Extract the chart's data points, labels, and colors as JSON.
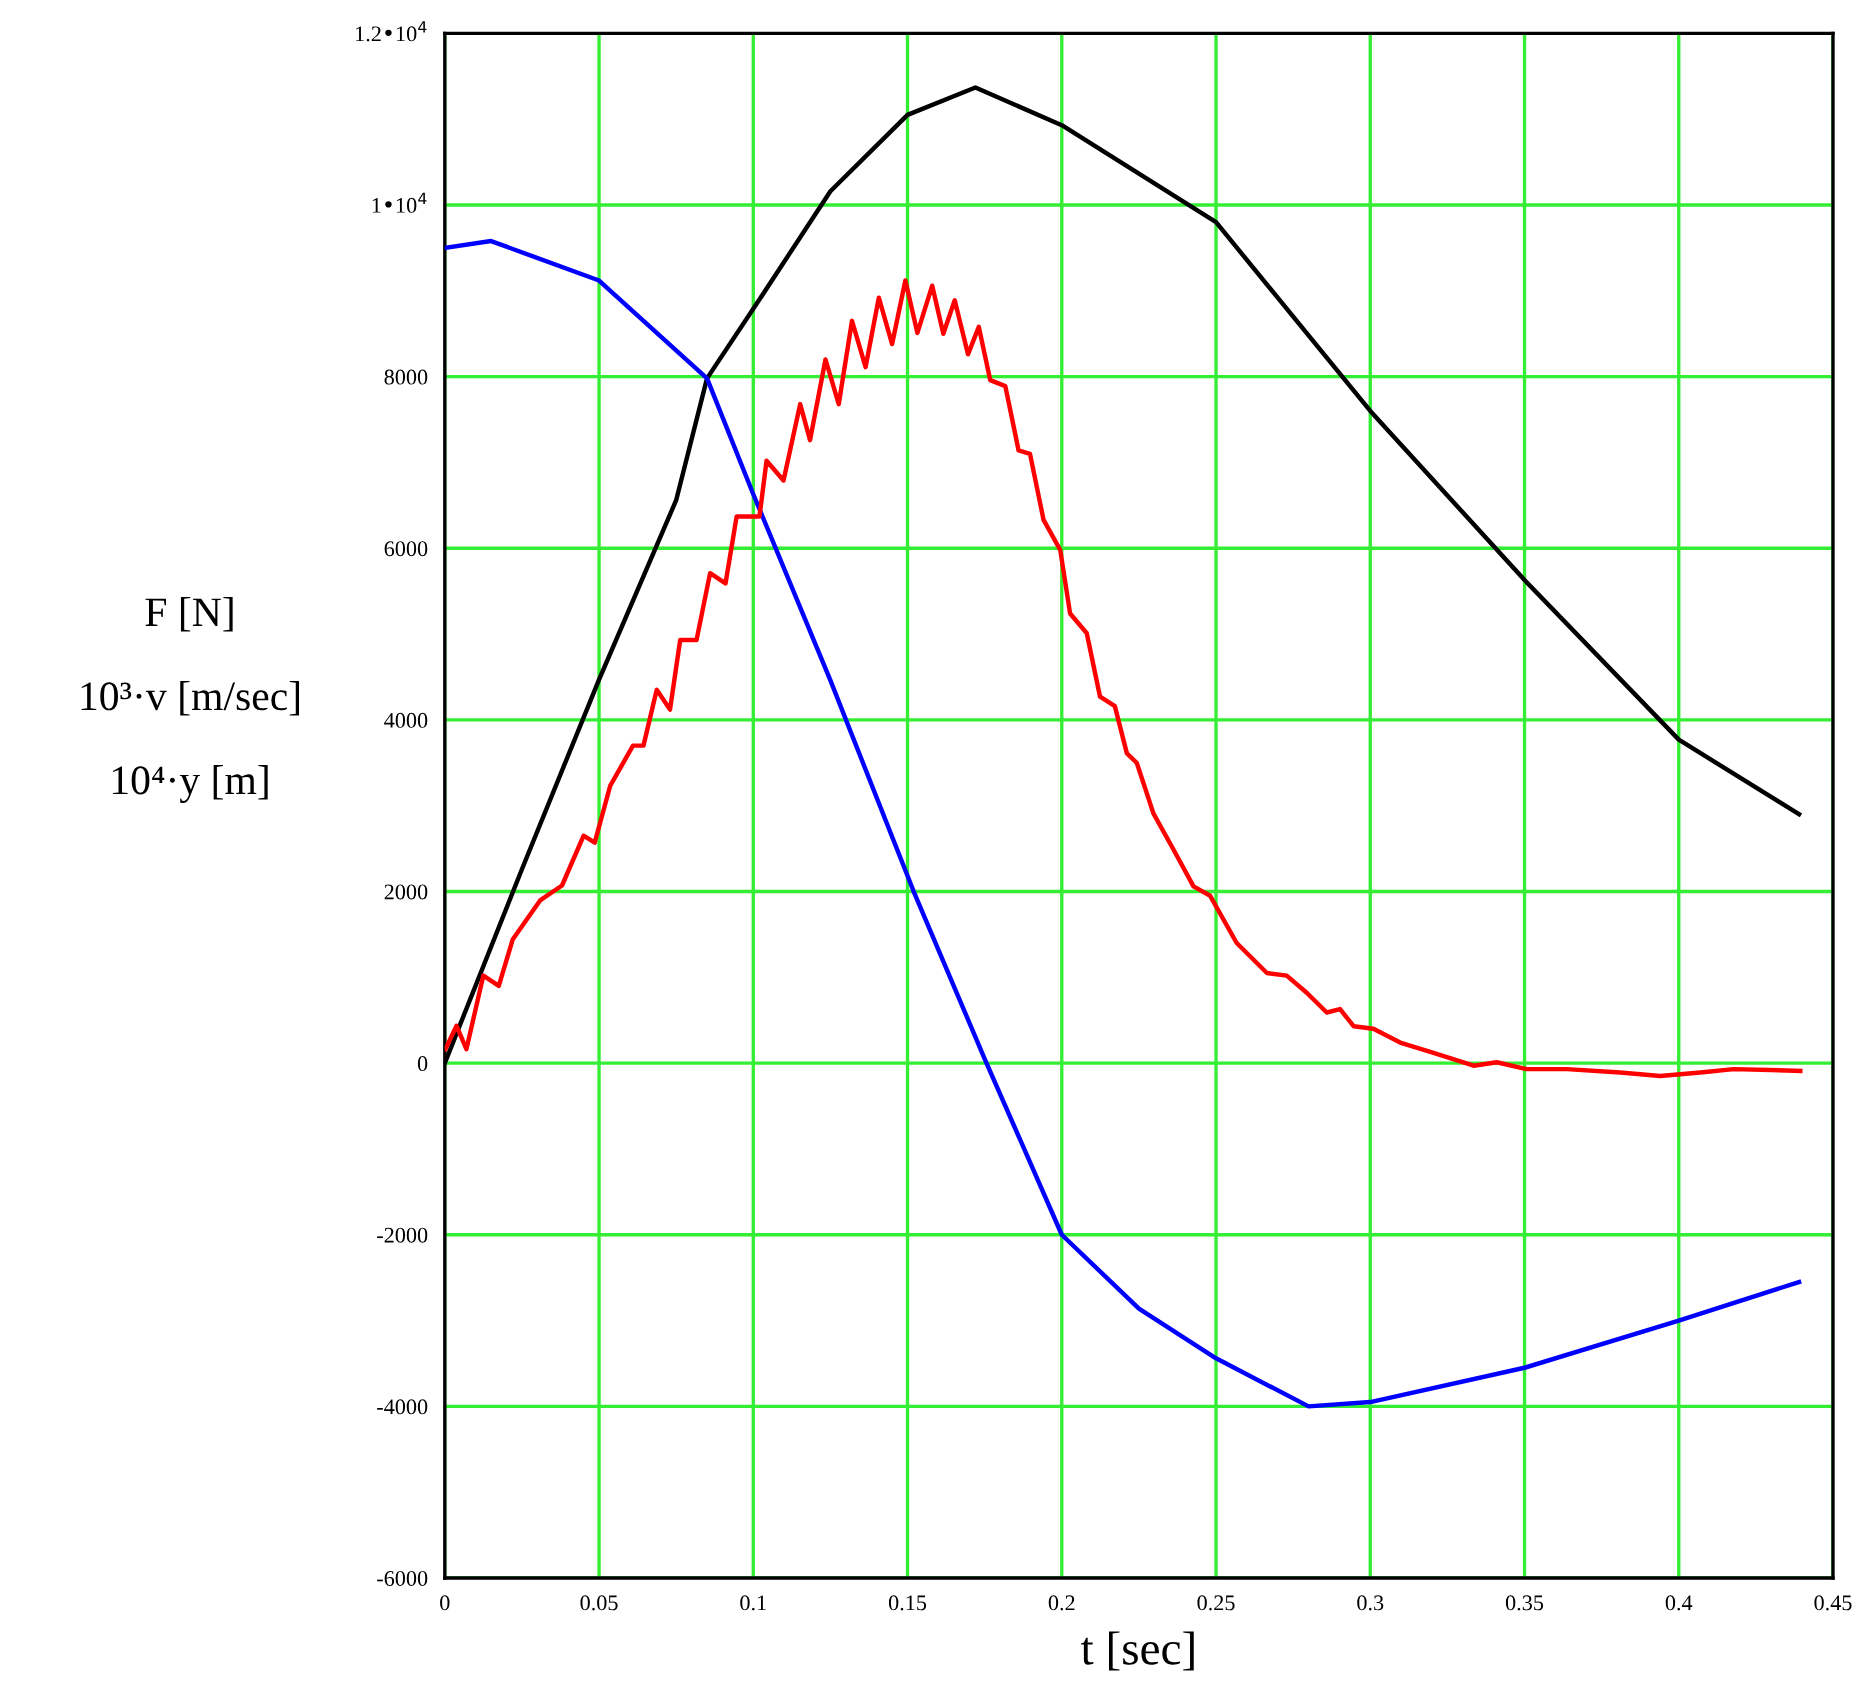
{
  "chart_data": {
    "type": "line",
    "xlabel": "t [sec]",
    "ylabel": "F [N]\n10³·v [m/sec]\n10⁴·y [m]",
    "xlim": [
      0,
      0.45
    ],
    "xticks": [
      0,
      0.05,
      0.1,
      0.15,
      0.2,
      0.25,
      0.3,
      0.35,
      0.4,
      0.45
    ],
    "ylim": [
      -6000,
      12000
    ],
    "yticks": [
      -6000,
      -4000,
      -2000,
      0,
      2000,
      4000,
      6000,
      8000,
      {
        "value": 10000,
        "label": "1•10$^{4}$"
      },
      {
        "value": 12000,
        "label": "1.2•10$^{4}$"
      }
    ],
    "grid": true,
    "legend": false,
    "marker": "none",
    "line_style": "solid",
    "series": [
      {
        "color": "#000000",
        "x": [
          0,
          0.025,
          0.05,
          0.075,
          0.085,
          0.1,
          0.125,
          0.15,
          0.172,
          0.2,
          0.25,
          0.3,
          0.35,
          0.4,
          0.439
        ],
        "values": [
          0,
          2260,
          4470,
          6560,
          7980,
          8790,
          10160,
          11050,
          11370,
          10930,
          9800,
          7600,
          5630,
          3770,
          2900
        ]
      },
      {
        "color": "#0000ff",
        "x": [
          0,
          0.015,
          0.05,
          0.085,
          0.1,
          0.125,
          0.152,
          0.175,
          0.2,
          0.225,
          0.25,
          0.28,
          0.3,
          0.35,
          0.4,
          0.439
        ],
        "values": [
          9500,
          9580,
          9120,
          7980,
          6630,
          4460,
          2000,
          50,
          -2000,
          -2860,
          -3440,
          -4000,
          -3950,
          -3550,
          -3000,
          -2550
        ]
      },
      {
        "color": "#ff0000",
        "x": [
          0.0002,
          0.0038,
          0.007,
          0.0125,
          0.0175,
          0.022,
          0.031,
          0.038,
          0.045,
          0.0486,
          0.0536,
          0.061,
          0.0644,
          0.0687,
          0.073,
          0.0763,
          0.0816,
          0.086,
          0.091,
          0.0946,
          0.102,
          0.1043,
          0.1098,
          0.1152,
          0.1184,
          0.1234,
          0.1277,
          0.132,
          0.1364,
          0.1407,
          0.145,
          0.1493,
          0.1532,
          0.158,
          0.1616,
          0.1653,
          0.1696,
          0.1731,
          0.1768,
          0.1817,
          0.186,
          0.1897,
          0.1941,
          0.1995,
          0.2027,
          0.2081,
          0.2124,
          0.2172,
          0.2211,
          0.2243,
          0.2297,
          0.2362,
          0.2427,
          0.2481,
          0.2567,
          0.2665,
          0.2729,
          0.2794,
          0.2859,
          0.2902,
          0.2946,
          0.301,
          0.3097,
          0.3205,
          0.3335,
          0.341,
          0.3507,
          0.3637,
          0.381,
          0.394,
          0.407,
          0.4178,
          0.4394
        ],
        "values": [
          163,
          435,
          163,
          1020,
          900,
          1440,
          1900,
          2070,
          2650,
          2570,
          3230,
          3700,
          3700,
          4350,
          4120,
          4930,
          4930,
          5710,
          5590,
          6370,
          6370,
          7020,
          6790,
          7680,
          7260,
          8200,
          7680,
          8650,
          8110,
          8920,
          8380,
          9120,
          8510,
          9060,
          8500,
          8890,
          8260,
          8580,
          7960,
          7890,
          7140,
          7100,
          6330,
          5980,
          5240,
          5010,
          4270,
          4160,
          3610,
          3500,
          2910,
          2490,
          2060,
          1950,
          1400,
          1050,
          1020,
          820,
          590,
          630,
          430,
          400,
          240,
          120,
          -30,
          10,
          -70,
          -70,
          -110,
          -150,
          -110,
          -70,
          -90
        ]
      }
    ]
  }
}
